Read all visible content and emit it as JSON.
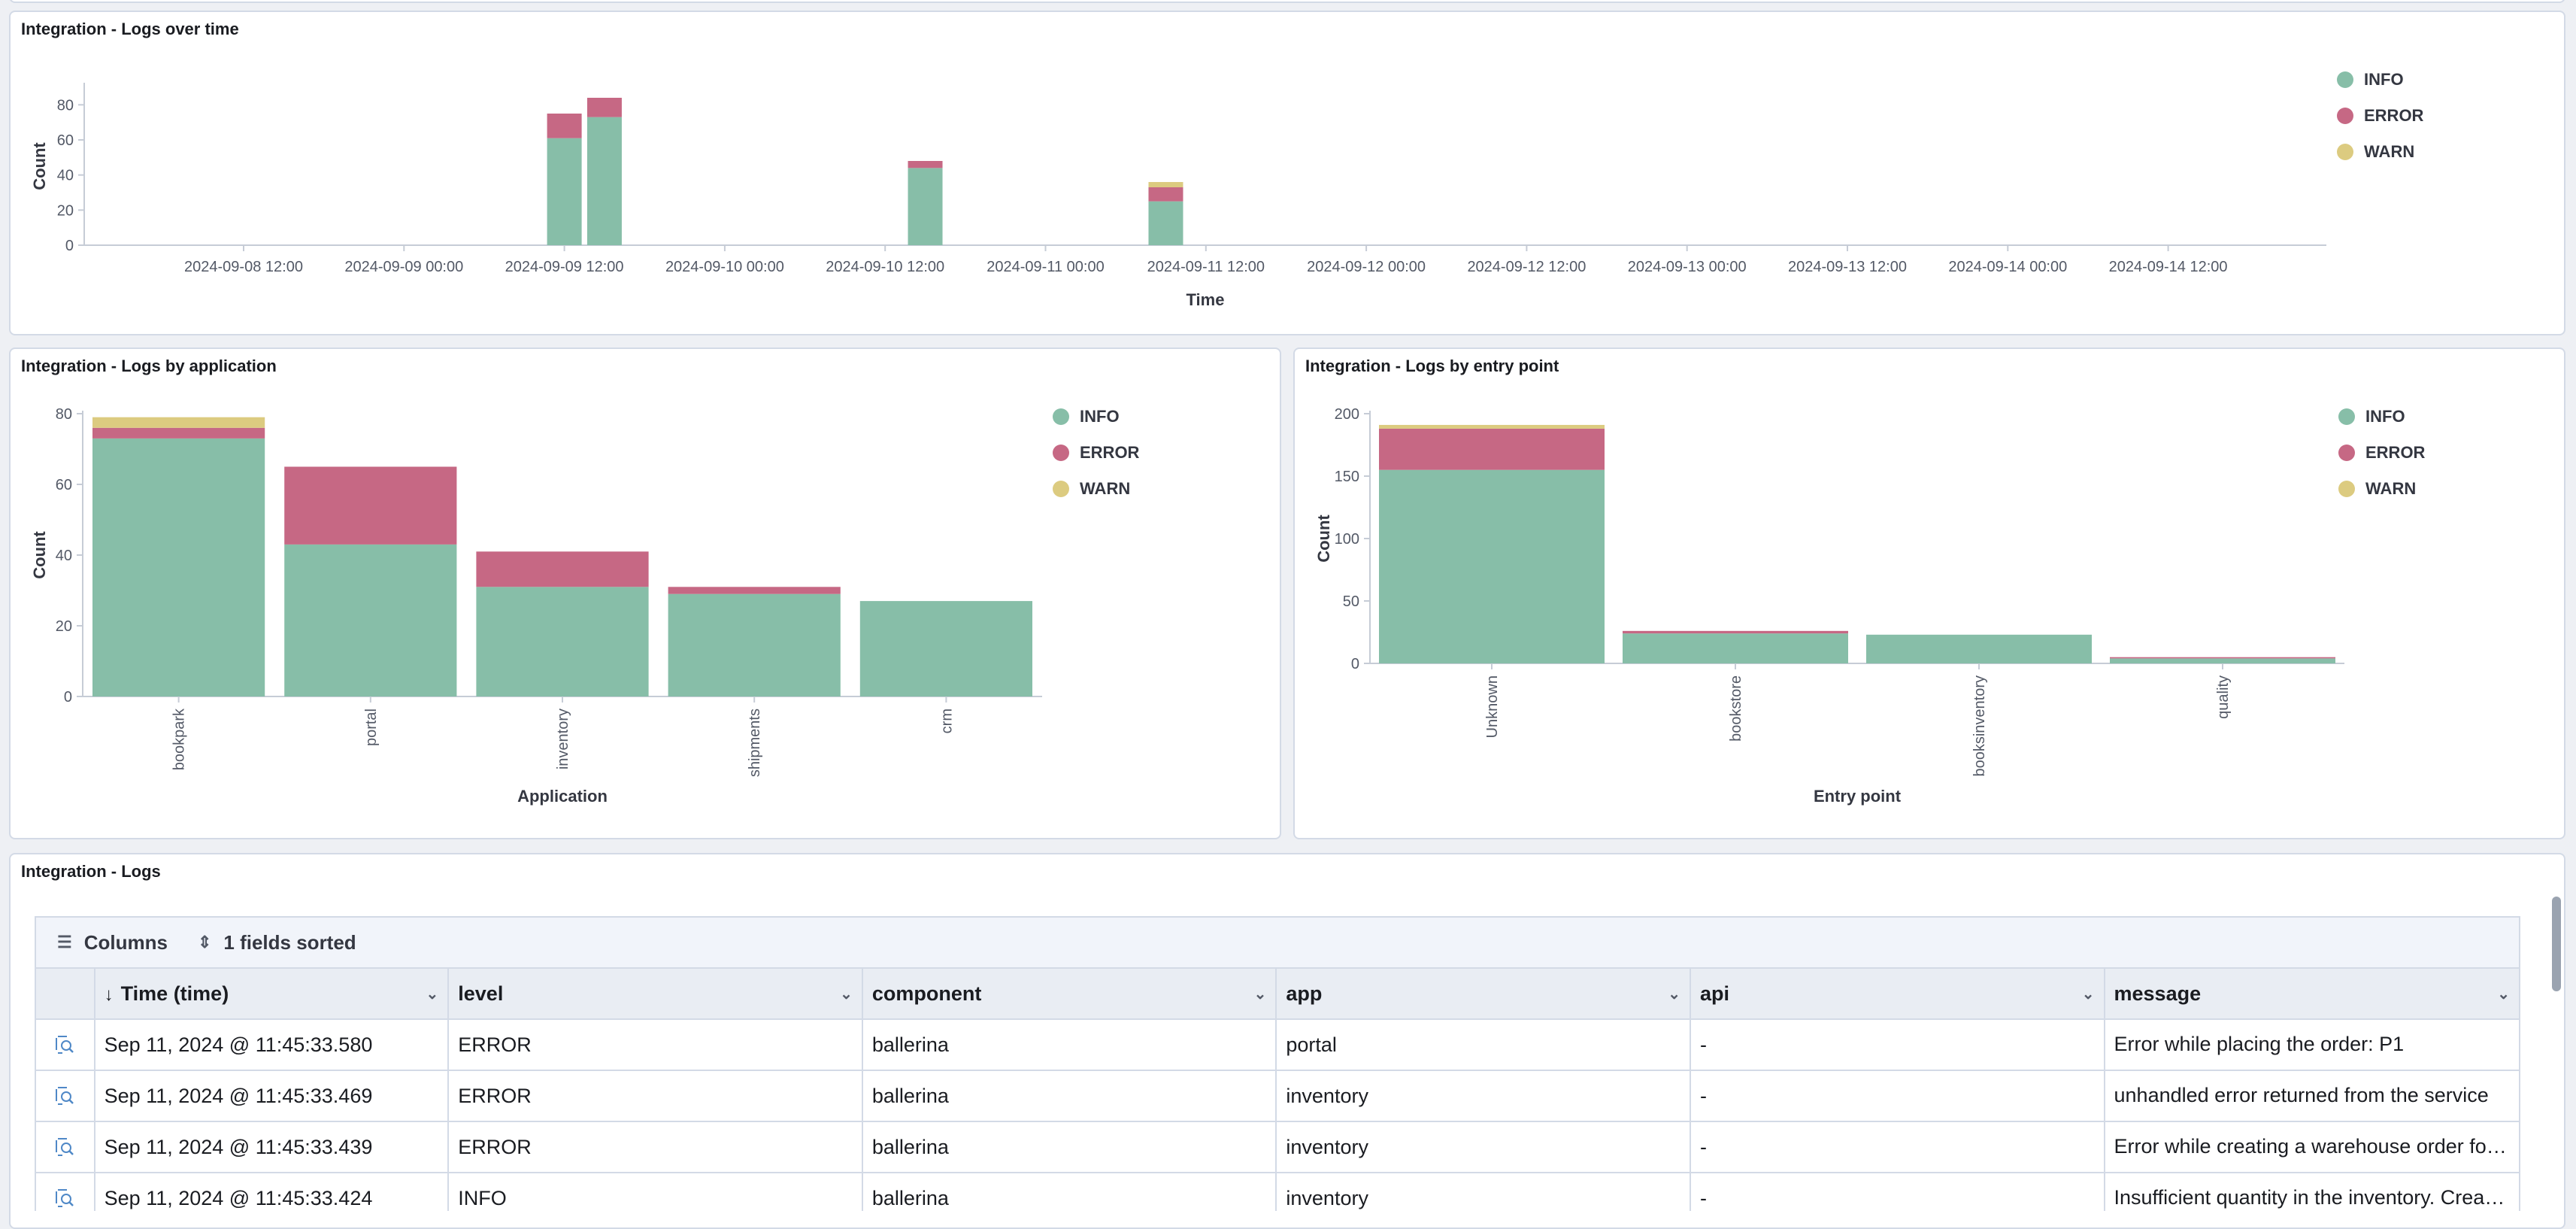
{
  "colors": {
    "info": "#87bea8",
    "error": "#c66884",
    "warn": "#dccb80"
  },
  "time_panel": {
    "title": "Integration - Logs over time",
    "legend": [
      {
        "label": "INFO",
        "color": "#87bea8"
      },
      {
        "label": "ERROR",
        "color": "#c66884"
      },
      {
        "label": "WARN",
        "color": "#dccb80"
      }
    ],
    "chart_data": {
      "type": "bar",
      "title": "Integration - Logs over time",
      "xlabel": "Time",
      "ylabel": "Count",
      "ylim": [
        0,
        90
      ],
      "yticks": [
        0,
        20,
        40,
        60,
        80
      ],
      "x_tick_labels": [
        "2024-09-08 12:00",
        "2024-09-09 00:00",
        "2024-09-09 12:00",
        "2024-09-10 00:00",
        "2024-09-10 12:00",
        "2024-09-11 00:00",
        "2024-09-11 12:00",
        "2024-09-12 00:00",
        "2024-09-12 12:00",
        "2024-09-13 00:00",
        "2024-09-13 12:00",
        "2024-09-14 00:00",
        "2024-09-14 12:00"
      ],
      "bars": [
        {
          "hours_from_2024-09-08 12:00": 24,
          "INFO": 61,
          "ERROR": 14,
          "WARN": 0
        },
        {
          "hours_from_2024-09-08 12:00": 27,
          "INFO": 73,
          "ERROR": 11,
          "WARN": 0
        },
        {
          "hours_from_2024-09-08 12:00": 51,
          "INFO": 44,
          "ERROR": 4,
          "WARN": 0
        },
        {
          "hours_from_2024-09-08 12:00": 69,
          "INFO": 25,
          "ERROR": 8,
          "WARN": 3
        }
      ]
    }
  },
  "app_panel": {
    "title": "Integration - Logs by application",
    "legend": [
      {
        "label": "INFO",
        "color": "#87bea8"
      },
      {
        "label": "ERROR",
        "color": "#c66884"
      },
      {
        "label": "WARN",
        "color": "#dccb80"
      }
    ],
    "chart_data": {
      "type": "bar",
      "title": "Integration - Logs by application",
      "xlabel": "Application",
      "ylabel": "Count",
      "ylim": [
        0,
        80
      ],
      "yticks": [
        0,
        20,
        40,
        60,
        80
      ],
      "categories": [
        "bookpark",
        "portal",
        "inventory",
        "shipments",
        "crm"
      ],
      "series": [
        {
          "name": "INFO",
          "values": [
            73,
            43,
            31,
            29,
            27
          ]
        },
        {
          "name": "ERROR",
          "values": [
            3,
            22,
            10,
            2,
            0
          ]
        },
        {
          "name": "WARN",
          "values": [
            3,
            0,
            0,
            0,
            0
          ]
        }
      ]
    }
  },
  "entry_panel": {
    "title": "Integration - Logs by entry point",
    "legend": [
      {
        "label": "INFO",
        "color": "#87bea8"
      },
      {
        "label": "ERROR",
        "color": "#c66884"
      },
      {
        "label": "WARN",
        "color": "#dccb80"
      }
    ],
    "chart_data": {
      "type": "bar",
      "title": "Integration - Logs by entry point",
      "xlabel": "Entry point",
      "ylabel": "Count",
      "ylim": [
        0,
        200
      ],
      "yticks": [
        0,
        50,
        100,
        150,
        200
      ],
      "categories": [
        "Unknown",
        "bookstore",
        "booksinventory",
        "quality"
      ],
      "series": [
        {
          "name": "INFO",
          "values": [
            155,
            24,
            23,
            4
          ]
        },
        {
          "name": "ERROR",
          "values": [
            33,
            2,
            0,
            1
          ]
        },
        {
          "name": "WARN",
          "values": [
            3,
            0,
            0,
            0
          ]
        }
      ]
    }
  },
  "logs_panel": {
    "title": "Integration - Logs",
    "toolbar": {
      "columns_label": "Columns",
      "sort_label": "1 fields sorted"
    },
    "columns": [
      {
        "label": "Time (time)"
      },
      {
        "label": "level"
      },
      {
        "label": "component"
      },
      {
        "label": "app"
      },
      {
        "label": "api"
      },
      {
        "label": "message"
      }
    ],
    "rows": [
      {
        "time": "Sep 11, 2024 @ 11:45:33.580",
        "level": "ERROR",
        "component": "ballerina",
        "app": "portal",
        "api": "-",
        "message": "Error while placing the order: P1"
      },
      {
        "time": "Sep 11, 2024 @ 11:45:33.469",
        "level": "ERROR",
        "component": "ballerina",
        "app": "inventory",
        "api": "-",
        "message": "unhandled error returned from the service"
      },
      {
        "time": "Sep 11, 2024 @ 11:45:33.439",
        "level": "ERROR",
        "component": "ballerina",
        "app": "inventory",
        "api": "-",
        "message": "Error while creating a warehouse order for P…"
      },
      {
        "time": "Sep 11, 2024 @ 11:45:33.424",
        "level": "INFO",
        "component": "ballerina",
        "app": "inventory",
        "api": "-",
        "message": "Insufficient quantity in the inventory. Creati…"
      }
    ]
  }
}
